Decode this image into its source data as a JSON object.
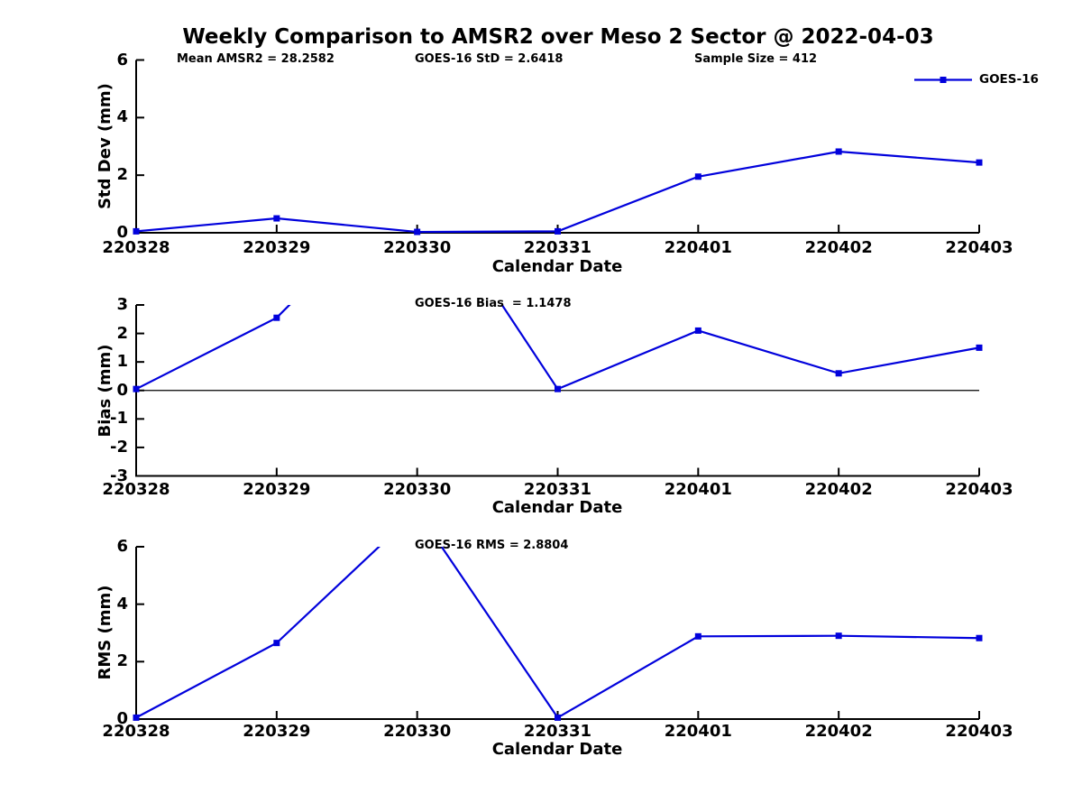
{
  "title": "Weekly Comparison to AMSR2 over Meso 2 Sector @ 2022-04-03",
  "legend": {
    "label": "GOES-16"
  },
  "line_color": "#0101dc",
  "axis_color": "#000000",
  "chart_data": {
    "type": "line",
    "x_categories": [
      "220328",
      "220329",
      "220330",
      "220331",
      "220401",
      "220402",
      "220403"
    ],
    "legend_position": "upper right outside plot",
    "grid": false,
    "subplots": [
      {
        "ylabel": "Std Dev (mm)",
        "xlabel": "Calendar Date",
        "ylim": [
          0,
          6
        ],
        "yticks": [
          0,
          2,
          4,
          6
        ],
        "series": [
          {
            "name": "GOES-16",
            "values": [
              0.05,
              0.5,
              0.03,
              0.05,
              1.95,
              2.82,
              2.44
            ]
          }
        ],
        "annotations": [
          {
            "text": "Mean AMSR2 = 28.2582"
          },
          {
            "text": "GOES-16 StD = 2.6418"
          },
          {
            "text": "Sample Size = 412"
          }
        ]
      },
      {
        "ylabel": "Bias (mm)",
        "xlabel": "Calendar Date",
        "ylim": [
          -3,
          3
        ],
        "yticks": [
          -3,
          -2,
          -1,
          0,
          1,
          2,
          3
        ],
        "zero_line": true,
        "series": [
          {
            "name": "GOES-16",
            "values": [
              0.05,
              2.55,
              7.5,
              0.05,
              2.1,
              0.6,
              1.5
            ]
          }
        ],
        "annotations": [
          {
            "text": "GOES-16 Bias  = 1.1478"
          }
        ]
      },
      {
        "ylabel": "RMS (mm)",
        "xlabel": "Calendar Date",
        "ylim": [
          0,
          6
        ],
        "yticks": [
          0,
          2,
          4,
          6
        ],
        "series": [
          {
            "name": "GOES-16",
            "values": [
              0.05,
              2.65,
              7.25,
              0.05,
              2.88,
              2.9,
              2.82
            ]
          }
        ],
        "annotations": [
          {
            "text": "GOES-16 RMS = 2.8804"
          }
        ]
      }
    ]
  }
}
